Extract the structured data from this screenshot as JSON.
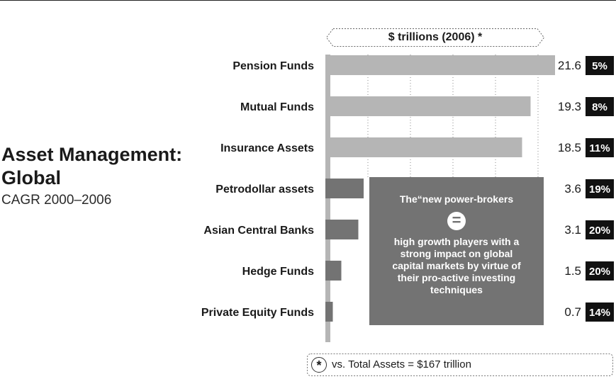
{
  "title": "Asset Management:\nGlobal",
  "subtitle": "CAGR 2000–2006",
  "unit_label": "$ trillions (2006) *",
  "callout": {
    "heading": "The“new power-brokers",
    "symbol": "=",
    "body": "high growth players with a strong impact on global capital markets by virtue of their pro-active investing techniques"
  },
  "footnote": {
    "symbol": "*",
    "text": "vs. Total Assets = $167 trillion"
  },
  "colors": {
    "light_bar": "#b5b5b5",
    "dark_bar": "#737373",
    "badge": "#111111"
  },
  "chart_data": {
    "type": "bar",
    "orientation": "horizontal",
    "categories": [
      "Pension Funds",
      "Mutual Funds",
      "Insurance Assets",
      "Petrodollar assets",
      "Asian Central Banks",
      "Hedge Funds",
      "Private Equity Funds"
    ],
    "values": [
      21.6,
      19.3,
      18.5,
      3.6,
      3.1,
      1.5,
      0.7
    ],
    "value_labels": [
      "21.6",
      "19.3",
      "18.5",
      "3.6",
      "3.1",
      "1.5",
      "0.7"
    ],
    "cagr": [
      "5%",
      "8%",
      "11%",
      "19%",
      "20%",
      "20%",
      "14%"
    ],
    "xlim": [
      0,
      20
    ],
    "grid": "dotted vertical",
    "groups": [
      "traditional",
      "traditional",
      "traditional",
      "new",
      "new",
      "new",
      "new"
    ]
  }
}
